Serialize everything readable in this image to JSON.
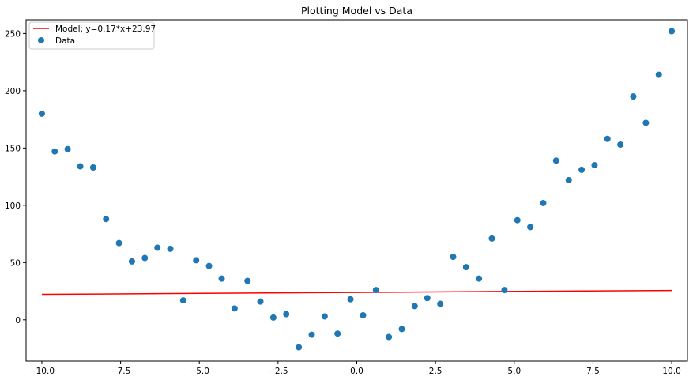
{
  "chart_data": {
    "type": "scatter",
    "title": "Plotting Model vs Data",
    "xlabel": "",
    "ylabel": "",
    "xlim": [
      -10.5,
      10.5
    ],
    "ylim": [
      -36,
      262
    ],
    "x_ticks": [
      -10.0,
      -7.5,
      -5.0,
      -2.5,
      0.0,
      2.5,
      5.0,
      7.5,
      10.0
    ],
    "x_tick_labels": [
      "−10.0",
      "−7.5",
      "−5.0",
      "−2.5",
      "0.0",
      "2.5",
      "5.0",
      "7.5",
      "10.0"
    ],
    "y_ticks": [
      0,
      50,
      100,
      150,
      200,
      250
    ],
    "y_tick_labels": [
      "0",
      "50",
      "100",
      "150",
      "200",
      "250"
    ],
    "grid": false,
    "legend_position": "top-left",
    "series": [
      {
        "name": "Model: y=0.17*x+23.97",
        "kind": "line",
        "color": "#ff0000",
        "x": [
          -10.0,
          10.0
        ],
        "y": [
          22.27,
          25.67
        ]
      },
      {
        "name": "Data",
        "kind": "scatter",
        "color": "#1f77b4",
        "x": [
          -10.0,
          -9.59,
          -9.18,
          -8.78,
          -8.37,
          -7.96,
          -7.55,
          -7.14,
          -6.73,
          -6.33,
          -5.92,
          -5.51,
          -5.1,
          -4.69,
          -4.29,
          -3.88,
          -3.47,
          -3.06,
          -2.65,
          -2.24,
          -1.84,
          -1.43,
          -1.02,
          -0.61,
          -0.2,
          0.2,
          0.61,
          1.02,
          1.43,
          1.84,
          2.24,
          2.65,
          3.06,
          3.47,
          3.88,
          4.29,
          4.69,
          5.1,
          5.51,
          5.92,
          6.33,
          6.73,
          7.14,
          7.55,
          7.96,
          8.37,
          8.78,
          9.18,
          9.59,
          10.0
        ],
        "y": [
          180,
          147,
          149,
          134,
          133,
          88,
          67,
          51,
          54,
          63,
          62,
          17,
          52,
          47,
          36,
          10,
          34,
          16,
          2,
          5,
          -24,
          -13,
          3,
          -12,
          18,
          4,
          26,
          -15,
          -8,
          12,
          19,
          14,
          55,
          46,
          36,
          71,
          26,
          87,
          81,
          102,
          139,
          122,
          131,
          135,
          158,
          153,
          195,
          172,
          214,
          252
        ]
      }
    ]
  }
}
